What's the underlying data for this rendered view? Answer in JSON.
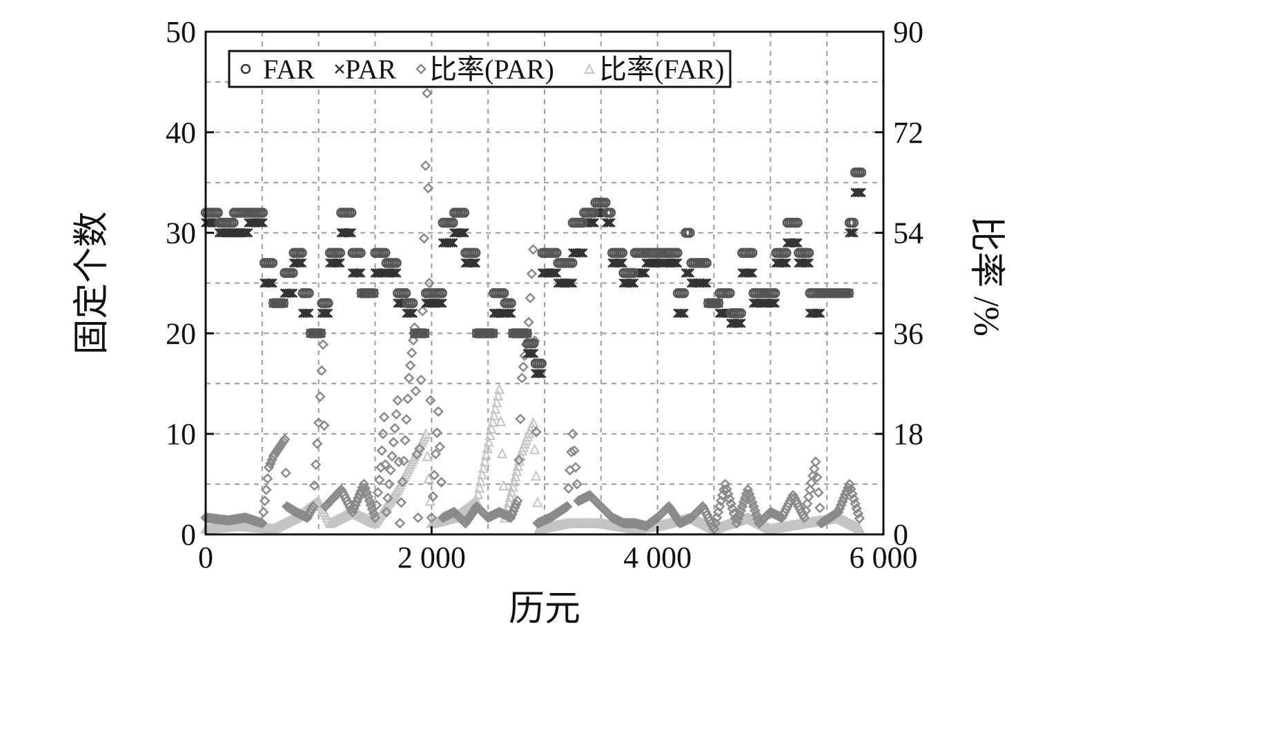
{
  "chart_data": {
    "type": "scatter",
    "xlabel": "历元",
    "ylabel_left": "固定个数",
    "ylabel_right": "比率 /%",
    "xlim": [
      0,
      6000
    ],
    "ylim_left": [
      0,
      50
    ],
    "ylim_right": [
      0,
      90
    ],
    "x_ticks": [
      0,
      2000,
      4000,
      6000
    ],
    "x_tick_labels": [
      "0",
      "2 000",
      "4 000",
      "6 000"
    ],
    "y_left_ticks": [
      0,
      10,
      20,
      30,
      40,
      50
    ],
    "y_left_tick_labels": [
      "0",
      "10",
      "20",
      "30",
      "40",
      "50"
    ],
    "y_right_ticks": [
      0,
      18,
      36,
      54,
      72,
      90
    ],
    "y_right_tick_labels": [
      "0",
      "18",
      "36",
      "54",
      "72",
      "90"
    ],
    "grid": true,
    "legend_position": "top-left",
    "legend": [
      {
        "label": "FAR",
        "marker": "circle"
      },
      {
        "label": "PAR",
        "marker": "cross"
      },
      {
        "label": "比率(PAR)",
        "marker": "diamond"
      },
      {
        "label": "比率(FAR)",
        "marker": "triangle"
      }
    ],
    "series": [
      {
        "name": "FAR",
        "axis": "left",
        "color": "#555555",
        "marker": "circle",
        "segments": [
          [
            0,
            120,
            32
          ],
          [
            120,
            250,
            31
          ],
          [
            250,
            380,
            32
          ],
          [
            380,
            520,
            32
          ],
          [
            520,
            600,
            27
          ],
          [
            600,
            700,
            23
          ],
          [
            700,
            780,
            26
          ],
          [
            780,
            860,
            28
          ],
          [
            860,
            930,
            24
          ],
          [
            930,
            1030,
            20
          ],
          [
            1030,
            1100,
            23
          ],
          [
            1100,
            1200,
            28
          ],
          [
            1200,
            1300,
            32
          ],
          [
            1300,
            1380,
            28
          ],
          [
            1380,
            1500,
            24
          ],
          [
            1500,
            1600,
            28
          ],
          [
            1600,
            1700,
            27
          ],
          [
            1700,
            1780,
            24
          ],
          [
            1780,
            1850,
            23
          ],
          [
            1850,
            1950,
            20
          ],
          [
            1950,
            2100,
            24
          ],
          [
            2100,
            2200,
            31
          ],
          [
            2200,
            2300,
            32
          ],
          [
            2300,
            2400,
            28
          ],
          [
            2400,
            2550,
            20
          ],
          [
            2550,
            2650,
            24
          ],
          [
            2650,
            2720,
            23
          ],
          [
            2720,
            2850,
            20
          ],
          [
            2850,
            2920,
            19
          ],
          [
            2920,
            2980,
            17
          ],
          [
            2980,
            3120,
            28
          ],
          [
            3120,
            3250,
            27
          ],
          [
            3250,
            3350,
            31
          ],
          [
            3350,
            3450,
            32
          ],
          [
            3450,
            3550,
            33
          ],
          [
            3550,
            3600,
            32
          ],
          [
            3600,
            3700,
            28
          ],
          [
            3700,
            3800,
            26
          ],
          [
            3800,
            3900,
            28
          ],
          [
            3900,
            4050,
            28
          ],
          [
            4050,
            4180,
            28
          ],
          [
            4180,
            4250,
            24
          ],
          [
            4250,
            4300,
            30
          ],
          [
            4300,
            4380,
            27
          ],
          [
            4380,
            4450,
            27
          ],
          [
            4450,
            4550,
            23
          ],
          [
            4550,
            4650,
            24
          ],
          [
            4650,
            4750,
            22
          ],
          [
            4750,
            4850,
            28
          ],
          [
            4850,
            4950,
            24
          ],
          [
            4950,
            5050,
            24
          ],
          [
            5050,
            5150,
            28
          ],
          [
            5150,
            5250,
            31
          ],
          [
            5250,
            5350,
            28
          ],
          [
            5350,
            5450,
            24
          ],
          [
            5450,
            5550,
            24
          ],
          [
            5550,
            5700,
            24
          ],
          [
            5700,
            5750,
            31
          ],
          [
            5750,
            5820,
            36
          ]
        ]
      },
      {
        "name": "PAR",
        "axis": "left",
        "color": "#333333",
        "marker": "cross",
        "segments": [
          [
            0,
            120,
            31
          ],
          [
            120,
            250,
            30
          ],
          [
            250,
            380,
            30
          ],
          [
            380,
            520,
            31
          ],
          [
            520,
            600,
            25
          ],
          [
            600,
            700,
            23
          ],
          [
            700,
            780,
            24
          ],
          [
            780,
            860,
            27
          ],
          [
            860,
            930,
            22
          ],
          [
            930,
            1030,
            20
          ],
          [
            1030,
            1100,
            22
          ],
          [
            1100,
            1200,
            27
          ],
          [
            1200,
            1300,
            30
          ],
          [
            1300,
            1380,
            26
          ],
          [
            1380,
            1500,
            24
          ],
          [
            1500,
            1600,
            26
          ],
          [
            1600,
            1700,
            26
          ],
          [
            1700,
            1780,
            23
          ],
          [
            1780,
            1850,
            22
          ],
          [
            1850,
            1950,
            20
          ],
          [
            1950,
            2100,
            23
          ],
          [
            2100,
            2200,
            29
          ],
          [
            2200,
            2300,
            30
          ],
          [
            2300,
            2400,
            27
          ],
          [
            2400,
            2550,
            20
          ],
          [
            2550,
            2650,
            22
          ],
          [
            2650,
            2720,
            22
          ],
          [
            2720,
            2850,
            20
          ],
          [
            2850,
            2920,
            18
          ],
          [
            2920,
            2980,
            16
          ],
          [
            2980,
            3120,
            26
          ],
          [
            3120,
            3250,
            25
          ],
          [
            3250,
            3350,
            28
          ],
          [
            3350,
            3450,
            31
          ],
          [
            3450,
            3550,
            32
          ],
          [
            3550,
            3600,
            31
          ],
          [
            3600,
            3700,
            27
          ],
          [
            3700,
            3800,
            25
          ],
          [
            3800,
            3900,
            26
          ],
          [
            3900,
            4050,
            27
          ],
          [
            4050,
            4180,
            27
          ],
          [
            4180,
            4250,
            22
          ],
          [
            4250,
            4300,
            26
          ],
          [
            4300,
            4380,
            25
          ],
          [
            4380,
            4450,
            25
          ],
          [
            4450,
            4550,
            23
          ],
          [
            4550,
            4650,
            22
          ],
          [
            4650,
            4750,
            21
          ],
          [
            4750,
            4850,
            26
          ],
          [
            4850,
            4950,
            23
          ],
          [
            4950,
            5050,
            23
          ],
          [
            5050,
            5150,
            27
          ],
          [
            5150,
            5250,
            29
          ],
          [
            5250,
            5350,
            27
          ],
          [
            5350,
            5450,
            22
          ],
          [
            5450,
            5550,
            24
          ],
          [
            5550,
            5700,
            24
          ],
          [
            5700,
            5750,
            30
          ],
          [
            5750,
            5820,
            34
          ]
        ]
      },
      {
        "name": "比率(PAR)",
        "axis": "right",
        "color": "#8a8a8a",
        "marker": "diamond",
        "curve": [
          [
            0,
            3
          ],
          [
            200,
            2.5
          ],
          [
            350,
            3
          ],
          [
            500,
            2
          ],
          [
            560,
            12
          ],
          [
            600,
            14
          ],
          [
            700,
            17
          ],
          [
            720,
            5
          ],
          [
            800,
            4
          ],
          [
            900,
            3
          ],
          [
            950,
            5
          ],
          [
            1000,
            20
          ],
          [
            1040,
            34
          ],
          [
            1060,
            5
          ],
          [
            1200,
            8
          ],
          [
            1300,
            4
          ],
          [
            1400,
            9
          ],
          [
            1500,
            3
          ],
          [
            1550,
            12
          ],
          [
            1580,
            21
          ],
          [
            1600,
            4
          ],
          [
            1700,
            24
          ],
          [
            1720,
            2
          ],
          [
            1800,
            28
          ],
          [
            1850,
            37
          ],
          [
            1880,
            3
          ],
          [
            1920,
            40
          ],
          [
            1960,
            79
          ],
          [
            1980,
            45
          ],
          [
            2000,
            3
          ],
          [
            2060,
            22
          ],
          [
            2100,
            3
          ],
          [
            2200,
            4
          ],
          [
            2300,
            2
          ],
          [
            2400,
            5
          ],
          [
            2500,
            3
          ],
          [
            2600,
            4
          ],
          [
            2700,
            3
          ],
          [
            2760,
            6
          ],
          [
            2800,
            28
          ],
          [
            2860,
            38
          ],
          [
            2900,
            51
          ],
          [
            2940,
            2
          ],
          [
            3050,
            3
          ],
          [
            3200,
            5
          ],
          [
            3250,
            18
          ],
          [
            3300,
            6
          ],
          [
            3400,
            7
          ],
          [
            3500,
            5
          ],
          [
            3600,
            3
          ],
          [
            3700,
            2
          ],
          [
            3800,
            2
          ],
          [
            3900,
            1.5
          ],
          [
            4000,
            3
          ],
          [
            4100,
            5
          ],
          [
            4200,
            2
          ],
          [
            4300,
            3
          ],
          [
            4400,
            5
          ],
          [
            4500,
            1
          ],
          [
            4600,
            9
          ],
          [
            4700,
            2
          ],
          [
            4800,
            8
          ],
          [
            4900,
            2
          ],
          [
            5000,
            4
          ],
          [
            5100,
            3
          ],
          [
            5200,
            7
          ],
          [
            5300,
            3
          ],
          [
            5400,
            13
          ],
          [
            5450,
            2
          ],
          [
            5600,
            4
          ],
          [
            5700,
            9
          ],
          [
            5800,
            2
          ]
        ]
      },
      {
        "name": "比率(FAR)",
        "axis": "right",
        "color": "#c4c4c4",
        "marker": "triangle",
        "curve": [
          [
            0,
            1
          ],
          [
            300,
            1.5
          ],
          [
            600,
            1
          ],
          [
            800,
            3
          ],
          [
            1000,
            6
          ],
          [
            1100,
            2
          ],
          [
            1300,
            4
          ],
          [
            1500,
            2
          ],
          [
            1700,
            8
          ],
          [
            1850,
            14
          ],
          [
            1950,
            18
          ],
          [
            2000,
            2
          ],
          [
            2200,
            3
          ],
          [
            2400,
            6
          ],
          [
            2600,
            26
          ],
          [
            2650,
            3
          ],
          [
            2800,
            15
          ],
          [
            2900,
            20
          ],
          [
            2950,
            1
          ],
          [
            3200,
            2
          ],
          [
            3500,
            2
          ],
          [
            3800,
            1
          ],
          [
            4000,
            1.5
          ],
          [
            4300,
            3
          ],
          [
            4500,
            1
          ],
          [
            4800,
            3
          ],
          [
            5000,
            1
          ],
          [
            5300,
            2
          ],
          [
            5600,
            3
          ],
          [
            5800,
            1
          ]
        ]
      }
    ]
  }
}
